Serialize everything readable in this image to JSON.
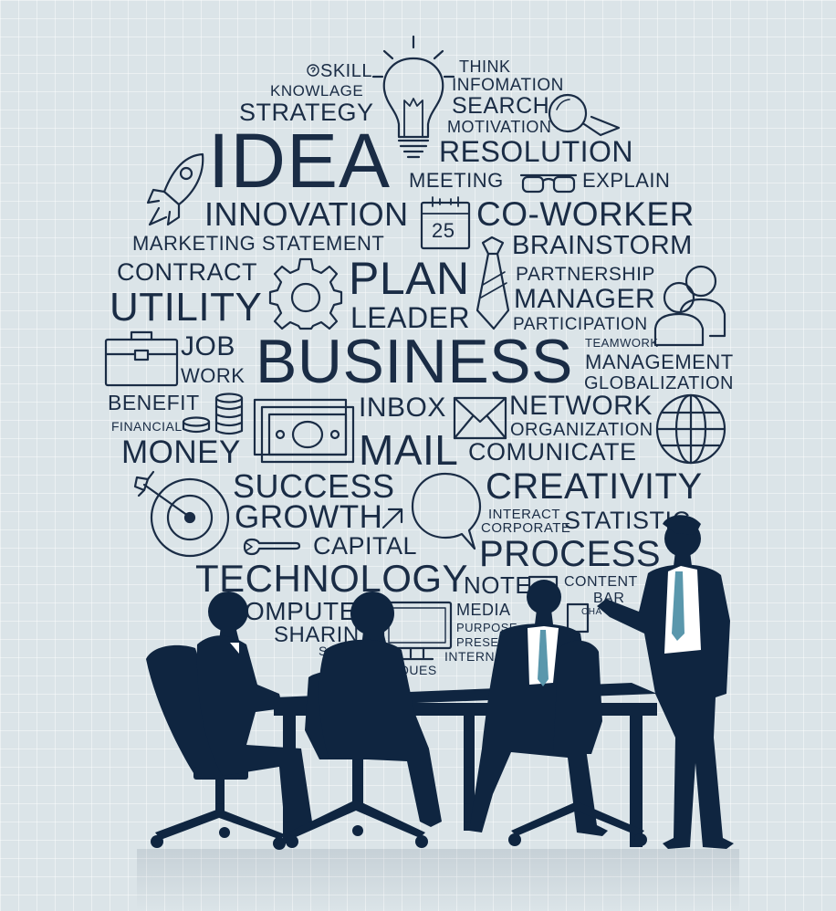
{
  "words": {
    "skill": "SKILL",
    "knowledge": "KNOWLAGE",
    "strategy": "STRATEGY",
    "think": "THINK",
    "information": "INFOMATION",
    "search": "SEARCH",
    "motivation": "MOTIVATION",
    "idea": "IDEA",
    "resolution": "RESOLUTION",
    "meeting": "MEETING",
    "explain": "EXPLAIN",
    "innovation": "INNOVATION",
    "co_worker": "CO-WORKER",
    "marketing_statement": "MARKETING STATEMENT",
    "brainstorm": "BRAINSTORM",
    "contract": "CONTRACT",
    "plan": "PLAN",
    "partnership": "PARTNERSHIP",
    "utility": "UTILITY",
    "manager": "MANAGER",
    "leader": "LEADER",
    "participation": "PARTICIPATION",
    "job": "JOB",
    "business": "BUSINESS",
    "teamwork": "TEAMWORK",
    "management": "MANAGEMENT",
    "work": "WORK",
    "globalization": "GLOBALIZATION",
    "benefit": "BENEFIT",
    "inbox": "INBOX",
    "network": "NETWORK",
    "financial": "FINANCIAL",
    "organization": "ORGANIZATION",
    "money": "MONEY",
    "mail": "MAIL",
    "comunicate": "COMUNICATE",
    "success": "SUCCESS",
    "creativity": "CREATIVITY",
    "growth": "GROWTH",
    "interact": "INTERACT",
    "corporate": "CORPORATE",
    "statistic": "STATISTIC",
    "capital": "CAPITAL",
    "process": "PROCESS",
    "technology": "TECHNOLOGY",
    "note": "NOTE",
    "content": "CONTENT",
    "computer": "OMPUTE",
    "bar": "BAR",
    "media": "MEDIA",
    "sharing": "SHARIN",
    "purpose": "PURPOSE",
    "present": "PRESEN",
    "internet": "INTERN",
    "techniques": "NIQUES",
    "s_fragment": "S",
    "cha": "CHA"
  },
  "calendar_day": "25",
  "icons": [
    "question-icon",
    "lightbulb-icon",
    "magnifier-icon",
    "rocket-icon",
    "glasses-icon",
    "calendar-icon",
    "tie-icon",
    "gear-icon",
    "people-icon",
    "briefcase-icon",
    "coins-icon",
    "banknote-icon",
    "envelope-icon",
    "globe-icon",
    "target-icon",
    "speech-bubble-icon",
    "arrow-icon",
    "wrench-icon",
    "monitor-icon"
  ],
  "colors": {
    "ink": "#1a2c45",
    "silhouette": "#0f2540",
    "tie": "#5a97ac",
    "background": "#dbe4e8"
  }
}
